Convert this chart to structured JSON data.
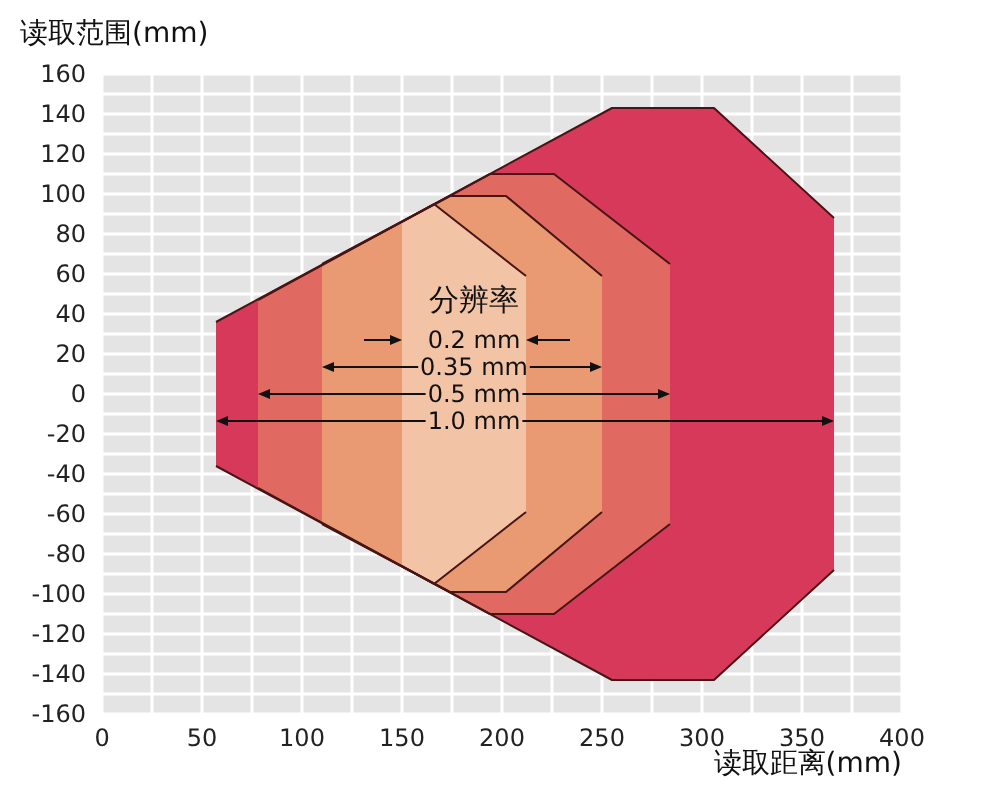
{
  "chart_data": {
    "type": "area",
    "xlabel": "读取距离(mm)",
    "ylabel": "读取范围(mm)",
    "legend_title": "分辨率",
    "xlim": [
      0,
      400
    ],
    "xticks": [
      0,
      50,
      100,
      150,
      200,
      250,
      300,
      350,
      400
    ],
    "ylim": [
      -160,
      160
    ],
    "yticks": [
      -160,
      -140,
      -120,
      -100,
      -80,
      -60,
      -40,
      -20,
      0,
      20,
      40,
      60,
      80,
      100,
      120,
      140,
      160
    ],
    "grid": true,
    "series": [
      {
        "name": "1.0 mm",
        "color": "#d6395a",
        "x": [
          57,
          255,
          306,
          366
        ],
        "values": [
          36,
          143,
          143,
          88
        ]
      },
      {
        "color": "#d6395a",
        "x": [
          57,
          255,
          306,
          366
        ],
        "values": [
          -36,
          -143,
          -143,
          -88
        ]
      },
      {
        "name": "0.5 mm",
        "color": "#e06a62",
        "x": [
          78,
          194,
          226,
          284
        ],
        "values": [
          47,
          110,
          110,
          65
        ]
      },
      {
        "color": "#e06a62",
        "x": [
          78,
          194,
          226,
          284
        ],
        "values": [
          -47,
          -110,
          -110,
          -65
        ]
      },
      {
        "name": "0.35 mm",
        "color": "#e99a72",
        "x": [
          110,
          174,
          202,
          250
        ],
        "values": [
          65,
          99,
          99,
          59
        ]
      },
      {
        "color": "#e99a72",
        "x": [
          110,
          174,
          202,
          250
        ],
        "values": [
          -65,
          -99,
          -99,
          -59
        ]
      },
      {
        "name": "0.2 mm",
        "color": "#f3c3a6",
        "x": [
          150,
          166,
          212
        ],
        "values": [
          86,
          95,
          59
        ]
      },
      {
        "color": "#f3c3a6",
        "x": [
          150,
          166,
          212
        ],
        "values": [
          -86,
          -95,
          -59
        ]
      }
    ]
  }
}
